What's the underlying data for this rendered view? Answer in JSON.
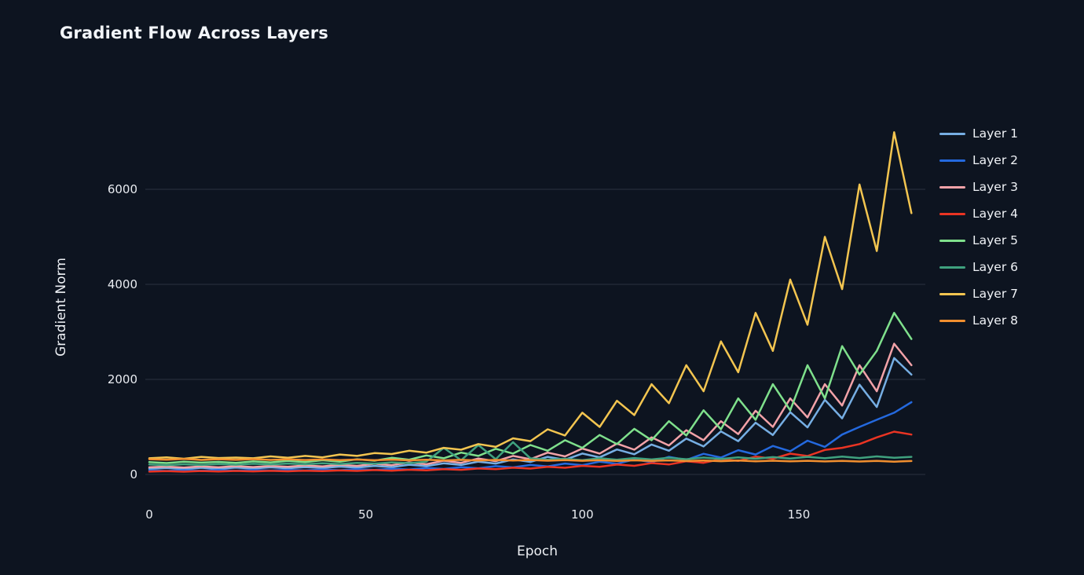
{
  "chart_data": {
    "type": "line",
    "title": "Gradient Flow Across Layers",
    "xlabel": "Epoch",
    "ylabel": "Gradient Norm",
    "xticks": [
      0,
      50,
      100,
      150
    ],
    "yticks": [
      0,
      2000,
      4000,
      6000
    ],
    "xlim": [
      0,
      176
    ],
    "ylim": [
      -200,
      7500
    ],
    "grid": "horizontal",
    "legend_position": "right",
    "colors": {
      "background": "#0d1420",
      "grid": "#2a3240",
      "text": "#eef1f5"
    },
    "x": [
      0,
      4,
      8,
      12,
      16,
      20,
      24,
      28,
      32,
      36,
      40,
      44,
      48,
      52,
      56,
      60,
      64,
      68,
      72,
      76,
      80,
      84,
      88,
      92,
      96,
      100,
      104,
      108,
      112,
      116,
      120,
      124,
      128,
      132,
      136,
      140,
      144,
      148,
      152,
      156,
      160,
      164,
      168,
      172,
      176
    ],
    "series": [
      {
        "name": "Layer 1",
        "color": "#76aee3",
        "values": [
          120,
          135,
          115,
          140,
          120,
          145,
          125,
          150,
          130,
          155,
          135,
          165,
          145,
          180,
          155,
          205,
          175,
          235,
          200,
          270,
          230,
          315,
          265,
          370,
          310,
          440,
          360,
          525,
          425,
          630,
          500,
          755,
          590,
          905,
          700,
          1090,
          830,
          1310,
          990,
          1570,
          1180,
          1890,
          1420,
          2450,
          2100
        ]
      },
      {
        "name": "Layer 2",
        "color": "#2469de",
        "values": [
          85,
          75,
          90,
          78,
          92,
          80,
          95,
          82,
          98,
          85,
          102,
          90,
          110,
          96,
          120,
          104,
          135,
          115,
          152,
          130,
          175,
          148,
          200,
          170,
          230,
          195,
          270,
          225,
          315,
          260,
          370,
          305,
          435,
          355,
          510,
          420,
          600,
          490,
          710,
          580,
          840,
          1000,
          1150,
          1300,
          1520
        ]
      },
      {
        "name": "Layer 3",
        "color": "#f2a2a8",
        "values": [
          150,
          165,
          145,
          170,
          150,
          175,
          155,
          180,
          160,
          190,
          170,
          205,
          180,
          225,
          195,
          255,
          215,
          290,
          245,
          335,
          280,
          390,
          320,
          460,
          380,
          545,
          440,
          650,
          520,
          780,
          610,
          930,
          720,
          1120,
          850,
          1340,
          1000,
          1600,
          1200,
          1900,
          1450,
          2300,
          1750,
          2750,
          2300
        ]
      },
      {
        "name": "Layer 4",
        "color": "#ea3423",
        "values": [
          60,
          70,
          58,
          72,
          62,
          74,
          64,
          76,
          66,
          80,
          70,
          85,
          74,
          92,
          80,
          100,
          88,
          112,
          98,
          126,
          110,
          142,
          124,
          160,
          140,
          182,
          160,
          208,
          182,
          240,
          210,
          278,
          244,
          322,
          284,
          375,
          330,
          438,
          388,
          515,
          560,
          640,
          780,
          900,
          840
        ]
      },
      {
        "name": "Layer 5",
        "color": "#7fe08c",
        "values": [
          260,
          240,
          270,
          250,
          265,
          245,
          275,
          255,
          285,
          260,
          300,
          270,
          320,
          290,
          350,
          310,
          400,
          340,
          460,
          390,
          540,
          440,
          620,
          500,
          720,
          560,
          830,
          640,
          960,
          720,
          1120,
          820,
          1350,
          950,
          1600,
          1150,
          1900,
          1350,
          2300,
          1600,
          2700,
          2100,
          2600,
          3400,
          2850
        ]
      },
      {
        "name": "Layer 6",
        "color": "#3fa17e",
        "values": [
          210,
          195,
          215,
          200,
          220,
          205,
          225,
          210,
          230,
          215,
          235,
          220,
          245,
          228,
          255,
          238,
          270,
          560,
          300,
          620,
          320,
          680,
          340,
          310,
          330,
          300,
          340,
          310,
          345,
          315,
          350,
          320,
          355,
          325,
          360,
          330,
          365,
          335,
          370,
          340,
          375,
          345,
          380,
          350,
          370
        ]
      },
      {
        "name": "Layer 7",
        "color": "#f3c550",
        "values": [
          340,
          360,
          330,
          370,
          345,
          355,
          340,
          380,
          350,
          390,
          360,
          420,
          390,
          450,
          430,
          500,
          460,
          560,
          520,
          640,
          580,
          760,
          700,
          950,
          820,
          1300,
          1000,
          1550,
          1250,
          1900,
          1500,
          2300,
          1750,
          2800,
          2150,
          3400,
          2600,
          4100,
          3150,
          5000,
          3900,
          6100,
          4700,
          7200,
          5500
        ]
      },
      {
        "name": "Layer 8",
        "color": "#f18f2f",
        "values": [
          320,
          310,
          325,
          305,
          320,
          308,
          322,
          306,
          318,
          304,
          316,
          302,
          314,
          300,
          312,
          298,
          310,
          296,
          308,
          294,
          306,
          292,
          304,
          290,
          302,
          288,
          300,
          286,
          298,
          284,
          296,
          282,
          294,
          280,
          292,
          278,
          290,
          276,
          288,
          274,
          286,
          272,
          284,
          270,
          282
        ]
      }
    ]
  }
}
